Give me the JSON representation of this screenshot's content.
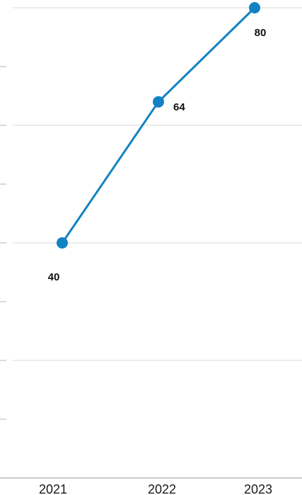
{
  "chart_data": {
    "type": "line",
    "categories": [
      "2021",
      "2022",
      "2023"
    ],
    "series": [
      {
        "values": [
          40,
          64,
          80
        ]
      }
    ],
    "data_labels": [
      "40",
      "64",
      "80"
    ],
    "ylim": [
      0,
      80
    ],
    "grid": true,
    "legend": "none",
    "title": "",
    "xlabel": "",
    "ylabel": "",
    "colors": {
      "line": "#1282c4",
      "gridline": "#d9d9d9",
      "tick_mark": "#b5b5b5",
      "axis": "#9a9a9a",
      "label": "#111111"
    }
  }
}
